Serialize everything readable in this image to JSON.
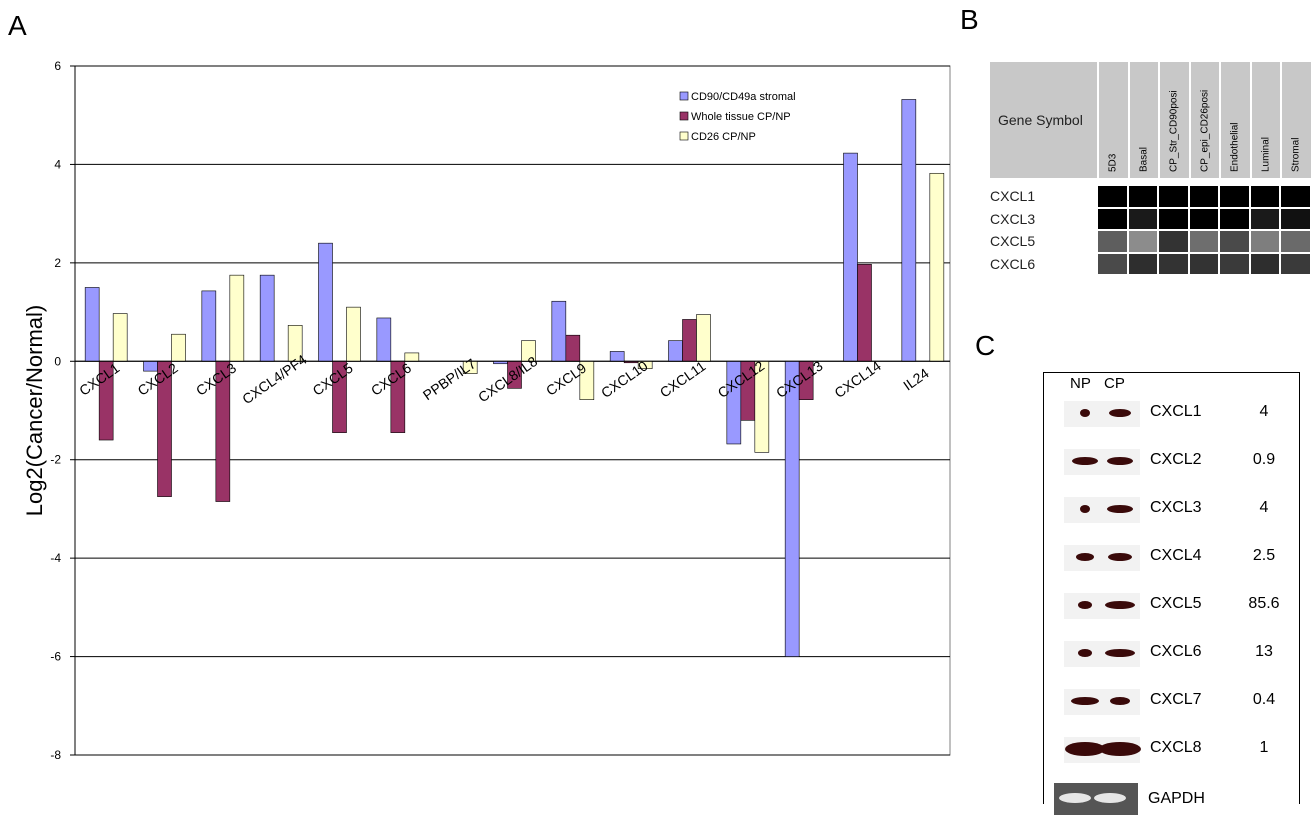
{
  "panels": {
    "a": "A",
    "b": "B",
    "c": "C"
  },
  "chart_data": {
    "type": "bar",
    "title": "",
    "ylabel": "Log2(Cancer/Normal)",
    "xlabel": "",
    "ylim": [
      -8,
      6
    ],
    "yticks": [
      6,
      4,
      2,
      0,
      -2,
      -4,
      -6,
      -8
    ],
    "grid": true,
    "legend_position": "top-right",
    "categories": [
      "CXCL1",
      "CXCL2",
      "CXCL3",
      "CXCL4/PF4",
      "CXCL5",
      "CXCL6",
      "PPBP/IL7",
      "CXCL8/IL8",
      "CXCL9",
      "CXCL10",
      "CXCL11",
      "CXCL12",
      "CXCL13",
      "CXCL14",
      "IL24"
    ],
    "series": [
      {
        "name": "CD90/CD49a stromal",
        "color": "#9999ff",
        "values": [
          1.5,
          -0.2,
          1.43,
          1.75,
          2.4,
          0.88,
          0,
          -0.05,
          1.22,
          0.2,
          0.42,
          -1.68,
          -6.0,
          4.23,
          5.32
        ]
      },
      {
        "name": "Whole tissue CP/NP",
        "color": "#993366",
        "values": [
          -1.6,
          -2.75,
          -2.85,
          0,
          -1.45,
          -1.45,
          0,
          -0.55,
          0.53,
          -0.03,
          0.85,
          -1.2,
          -0.78,
          1.97,
          0
        ]
      },
      {
        "name": "CD26 CP/NP",
        "color": "#ffffcc",
        "values": [
          0.97,
          0.55,
          1.75,
          0.73,
          1.1,
          0.17,
          -0.25,
          0.42,
          -0.78,
          -0.15,
          0.95,
          -1.85,
          0,
          0,
          3.82
        ]
      }
    ]
  },
  "panel_b": {
    "gene_symbol_header": "Gene Symbol",
    "columns": [
      "5D3",
      "Basal",
      "CP_Str_CD90posi",
      "CP_epi_CD26posi",
      "Endothelial",
      "Luminal",
      "Stromal"
    ],
    "rows": [
      {
        "gene": "CXCL1",
        "cells": [
          "#000000",
          "#000000",
          "#000000",
          "#000000",
          "#000000",
          "#000000",
          "#000000"
        ]
      },
      {
        "gene": "CXCL3",
        "cells": [
          "#000000",
          "#1a1a1a",
          "#000000",
          "#000000",
          "#000000",
          "#1a1a1a",
          "#111111"
        ]
      },
      {
        "gene": "CXCL5",
        "cells": [
          "#5e5e5e",
          "#8c8c8c",
          "#333333",
          "#6e6e6e",
          "#4a4a4a",
          "#7e7e7e",
          "#6a6a6a"
        ]
      },
      {
        "gene": "CXCL6",
        "cells": [
          "#4a4a4a",
          "#2e2e2e",
          "#333333",
          "#333333",
          "#3a3a3a",
          "#2e2e2e",
          "#3a3a3a"
        ]
      }
    ]
  },
  "panel_c": {
    "lanes": [
      "NP",
      "CP"
    ],
    "rows": [
      {
        "gene": "CXCL1",
        "value": "4"
      },
      {
        "gene": "CXCL2",
        "value": "0.9"
      },
      {
        "gene": "CXCL3",
        "value": "4"
      },
      {
        "gene": "CXCL4",
        "value": "2.5"
      },
      {
        "gene": "CXCL5",
        "value": "85.6"
      },
      {
        "gene": "CXCL6",
        "value": "13"
      },
      {
        "gene": "CXCL7",
        "value": "0.4"
      },
      {
        "gene": "CXCL8",
        "value": "1"
      },
      {
        "gene": "GAPDH",
        "value": ""
      }
    ]
  }
}
